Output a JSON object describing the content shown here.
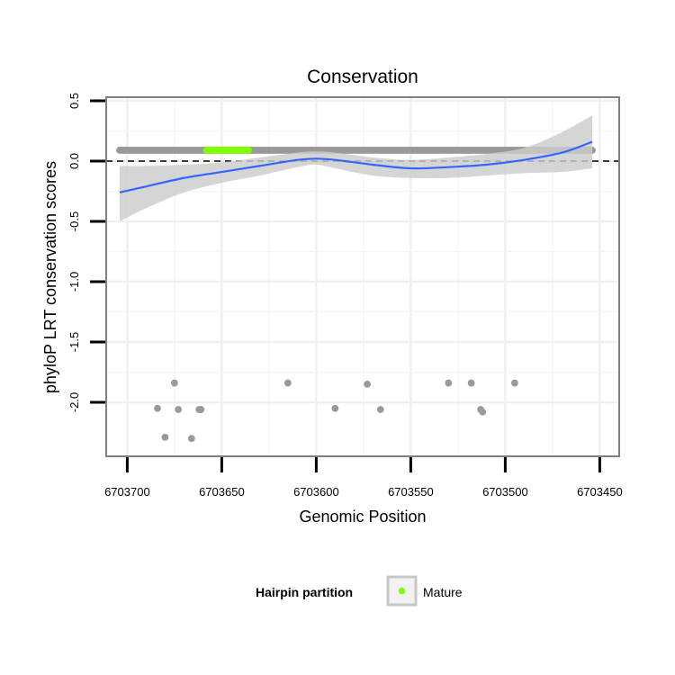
{
  "chart_data": {
    "type": "scatter",
    "title": "Conservation",
    "xlabel": "Genomic Position",
    "ylabel": "phyloP LRT conservation scores",
    "x_reversed": true,
    "xlim": [
      6703704,
      6703454
    ],
    "ylim": [
      -2.3,
      0.5
    ],
    "x_ticks": [
      6703700,
      6703650,
      6703600,
      6703550,
      6703500,
      6703450
    ],
    "x_tick_labels": [
      "6703700",
      "6703650",
      "6703600",
      "6703550",
      "6703500",
      "6703450"
    ],
    "y_ticks": [
      0.5,
      0.0,
      -0.5,
      -1.0,
      -1.5,
      -2.0
    ],
    "y_tick_labels": [
      "0.5",
      "0.0",
      "-0.5",
      "-1.0",
      "-1.5",
      "-2.0"
    ],
    "reference_line": {
      "y": 0.0,
      "style": "dashed"
    },
    "band": {
      "x_start": 6703704,
      "x_end": 6703454,
      "y": 0.09,
      "count": 251,
      "color": "#999999",
      "label": "Hairpin"
    },
    "mature_band": {
      "x_start": 6703658,
      "x_end": 6703636,
      "y": 0.09,
      "color": "#7fff00",
      "label": "Mature"
    },
    "outliers": [
      {
        "x": 6703684,
        "y": -2.05
      },
      {
        "x": 6703680,
        "y": -2.29
      },
      {
        "x": 6703675,
        "y": -1.84
      },
      {
        "x": 6703673,
        "y": -2.06
      },
      {
        "x": 6703666,
        "y": -2.3
      },
      {
        "x": 6703662,
        "y": -2.06
      },
      {
        "x": 6703661,
        "y": -2.06
      },
      {
        "x": 6703615,
        "y": -1.84
      },
      {
        "x": 6703590,
        "y": -2.05
      },
      {
        "x": 6703573,
        "y": -1.85
      },
      {
        "x": 6703566,
        "y": -2.06
      },
      {
        "x": 6703530,
        "y": -1.84
      },
      {
        "x": 6703518,
        "y": -1.84
      },
      {
        "x": 6703513,
        "y": -2.06
      },
      {
        "x": 6703512,
        "y": -2.08
      },
      {
        "x": 6703495,
        "y": -1.84
      }
    ],
    "smooth": {
      "color": "#3366ff",
      "x": [
        6703704,
        6703690,
        6703670,
        6703650,
        6703630,
        6703610,
        6703600,
        6703590,
        6703570,
        6703550,
        6703530,
        6703510,
        6703490,
        6703470,
        6703454
      ],
      "y": [
        -0.26,
        -0.21,
        -0.14,
        -0.09,
        -0.04,
        0.01,
        0.02,
        0.01,
        -0.03,
        -0.06,
        -0.05,
        -0.03,
        0.01,
        0.07,
        0.16
      ],
      "upper": [
        -0.04,
        -0.04,
        -0.03,
        -0.01,
        0.03,
        0.07,
        0.08,
        0.07,
        0.03,
        0.01,
        0.03,
        0.06,
        0.11,
        0.24,
        0.38
      ],
      "lower": [
        -0.5,
        -0.39,
        -0.26,
        -0.18,
        -0.12,
        -0.05,
        -0.03,
        -0.06,
        -0.12,
        -0.14,
        -0.14,
        -0.12,
        -0.1,
        -0.09,
        -0.06
      ],
      "band_color": "#cccccc"
    },
    "legend": {
      "title": "Hairpin partition",
      "position": "bottom",
      "entries": [
        {
          "label": "Mature",
          "color": "#7fff00"
        }
      ]
    }
  }
}
